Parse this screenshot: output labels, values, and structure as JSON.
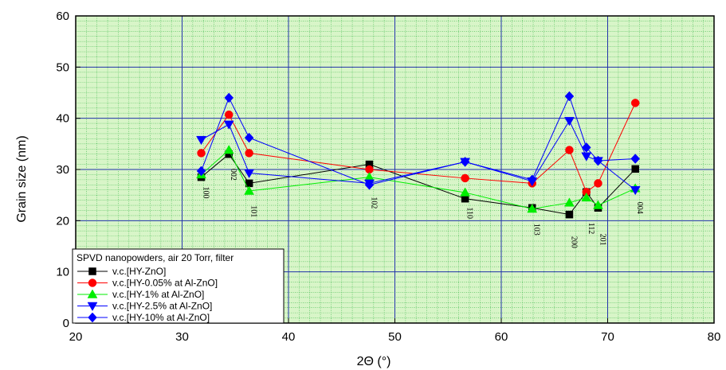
{
  "chart_data": {
    "type": "line",
    "title": "",
    "xlabel": "2Θ (°)",
    "ylabel": "Grain size (nm)",
    "xlim": [
      20,
      80
    ],
    "ylim": [
      0,
      60
    ],
    "x_ticks": [
      20,
      30,
      40,
      50,
      60,
      70,
      80
    ],
    "y_ticks": [
      0,
      10,
      20,
      30,
      40,
      50,
      60
    ],
    "grid": true,
    "minor_grid": true,
    "colors": {
      "plot_background": "#d8f5c8",
      "minor_grid": "#3cb84a",
      "major_grid": "#2233aa"
    },
    "legend": {
      "title": "SPVD nanopowders, air 20 Torr, filter",
      "position": "bottom-left"
    },
    "series": [
      {
        "name": "v.c.[HY-ZnO]",
        "color": "#000000",
        "marker": "square",
        "x": [
          31.8,
          34.4,
          36.3,
          47.6,
          56.6,
          62.9,
          66.4,
          68.0,
          69.1,
          72.6
        ],
        "y": [
          28.5,
          33.0,
          27.3,
          31.0,
          24.3,
          22.5,
          21.2,
          25.6,
          22.5,
          30.1
        ]
      },
      {
        "name": "v.c.[HY-0.05% at Al-ZnO]",
        "color": "#ff0000",
        "marker": "circle",
        "x": [
          31.8,
          34.4,
          36.3,
          47.6,
          56.6,
          62.9,
          66.4,
          68.0,
          69.1,
          72.6
        ],
        "y": [
          33.2,
          40.7,
          33.2,
          30.0,
          28.3,
          27.3,
          33.8,
          25.6,
          27.3,
          43.0
        ]
      },
      {
        "name": "v.c.[HY-1% at Al-ZnO]",
        "color": "#00ee00",
        "marker": "triangle-up",
        "x": [
          31.8,
          34.4,
          36.3,
          47.6,
          56.6,
          62.9,
          66.4,
          68.0,
          69.1,
          72.6
        ],
        "y": [
          29.0,
          33.8,
          25.8,
          28.5,
          25.5,
          22.3,
          23.5,
          24.5,
          23.0,
          26.3
        ]
      },
      {
        "name": "v.c.[HY-2.5% at Al-ZnO]",
        "color": "#0000ff",
        "marker": "triangle-down",
        "x": [
          31.8,
          34.4,
          36.3,
          47.6,
          56.6,
          62.9,
          66.4,
          68.0,
          69.1,
          72.6
        ],
        "y": [
          35.8,
          38.8,
          29.3,
          27.3,
          31.5,
          27.7,
          39.5,
          32.6,
          31.7,
          26.0
        ]
      },
      {
        "name": "v.c.[HY-10% at Al-ZnO]",
        "color": "#0000ff",
        "marker": "diamond",
        "x": [
          31.8,
          34.4,
          36.3,
          47.6,
          56.6,
          62.9,
          66.4,
          68.0,
          69.1,
          72.6
        ],
        "y": [
          29.7,
          44.0,
          36.2,
          27.0,
          31.5,
          28.0,
          44.3,
          34.3,
          31.7,
          32.1
        ]
      }
    ],
    "annotations": [
      {
        "text": "100",
        "x": 31.8,
        "y": 25.5
      },
      {
        "text": "002",
        "x": 34.4,
        "y": 29.0
      },
      {
        "text": "101",
        "x": 36.3,
        "y": 21.8
      },
      {
        "text": "102",
        "x": 47.6,
        "y": 23.5
      },
      {
        "text": "110",
        "x": 56.6,
        "y": 21.5
      },
      {
        "text": "103",
        "x": 62.9,
        "y": 18.3
      },
      {
        "text": "200",
        "x": 66.4,
        "y": 15.8
      },
      {
        "text": "112",
        "x": 68.0,
        "y": 18.5
      },
      {
        "text": "201",
        "x": 69.1,
        "y": 16.3
      },
      {
        "text": "004",
        "x": 72.6,
        "y": 22.5
      }
    ]
  }
}
